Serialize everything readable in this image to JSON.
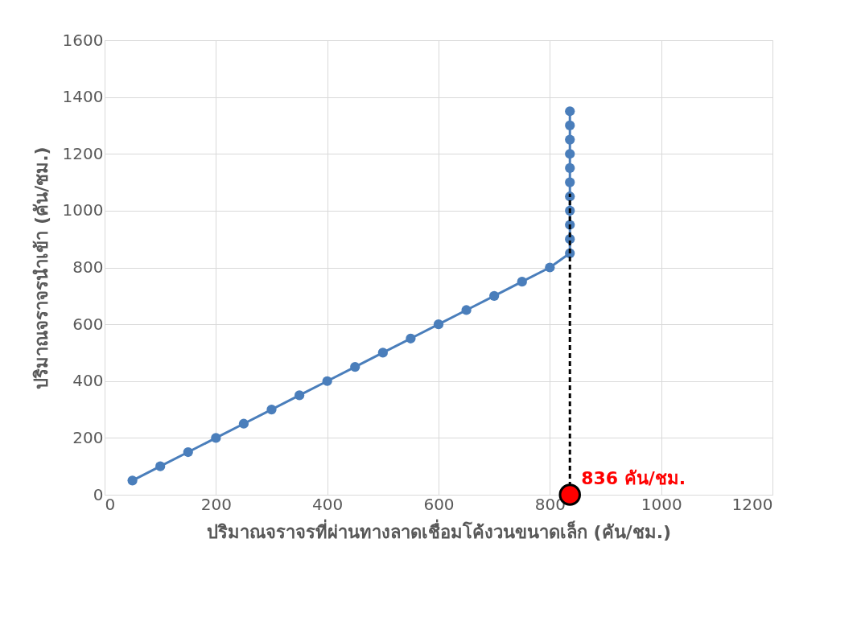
{
  "chart_data": {
    "type": "line",
    "xlabel": "ปริมาณจราจรที่ผ่านทางลาดเชื่อมโค้งวนขนาดเล็ก (คัน/ชม.)",
    "ylabel": "ปริมาณจราจรนำเข้า (คัน/ชม.)",
    "xlim": [
      0,
      1200
    ],
    "xticks": [
      0,
      200,
      400,
      600,
      800,
      1000,
      1200
    ],
    "ylim": [
      0,
      1600
    ],
    "yticks": [
      0,
      200,
      400,
      600,
      800,
      1000,
      1200,
      1400,
      1600
    ],
    "grid": true,
    "series": [
      {
        "color": "#4a7ebb",
        "marker": "circle",
        "line_style": "solid",
        "x": [
          50,
          100,
          150,
          200,
          250,
          300,
          350,
          400,
          450,
          500,
          550,
          600,
          650,
          700,
          750,
          800,
          836,
          836,
          836,
          836,
          836,
          836,
          836,
          836,
          836,
          836,
          836
        ],
        "values": [
          50,
          100,
          150,
          200,
          250,
          300,
          350,
          400,
          450,
          500,
          550,
          600,
          650,
          700,
          750,
          800,
          850,
          900,
          950,
          1000,
          1050,
          1100,
          1150,
          1200,
          1250,
          1300,
          1350
        ]
      },
      {
        "type": "line",
        "color": "#000000",
        "marker": "none",
        "line_style": "dashed",
        "x": [
          836,
          836
        ],
        "values": [
          0,
          1060
        ]
      },
      {
        "type": "scatter",
        "color": "#ff0000",
        "marker": "circle",
        "x": [
          836
        ],
        "values": [
          0
        ]
      }
    ],
    "annotations": [
      {
        "text": "836 คัน/ชม.",
        "x": 836,
        "y": 0
      }
    ]
  }
}
